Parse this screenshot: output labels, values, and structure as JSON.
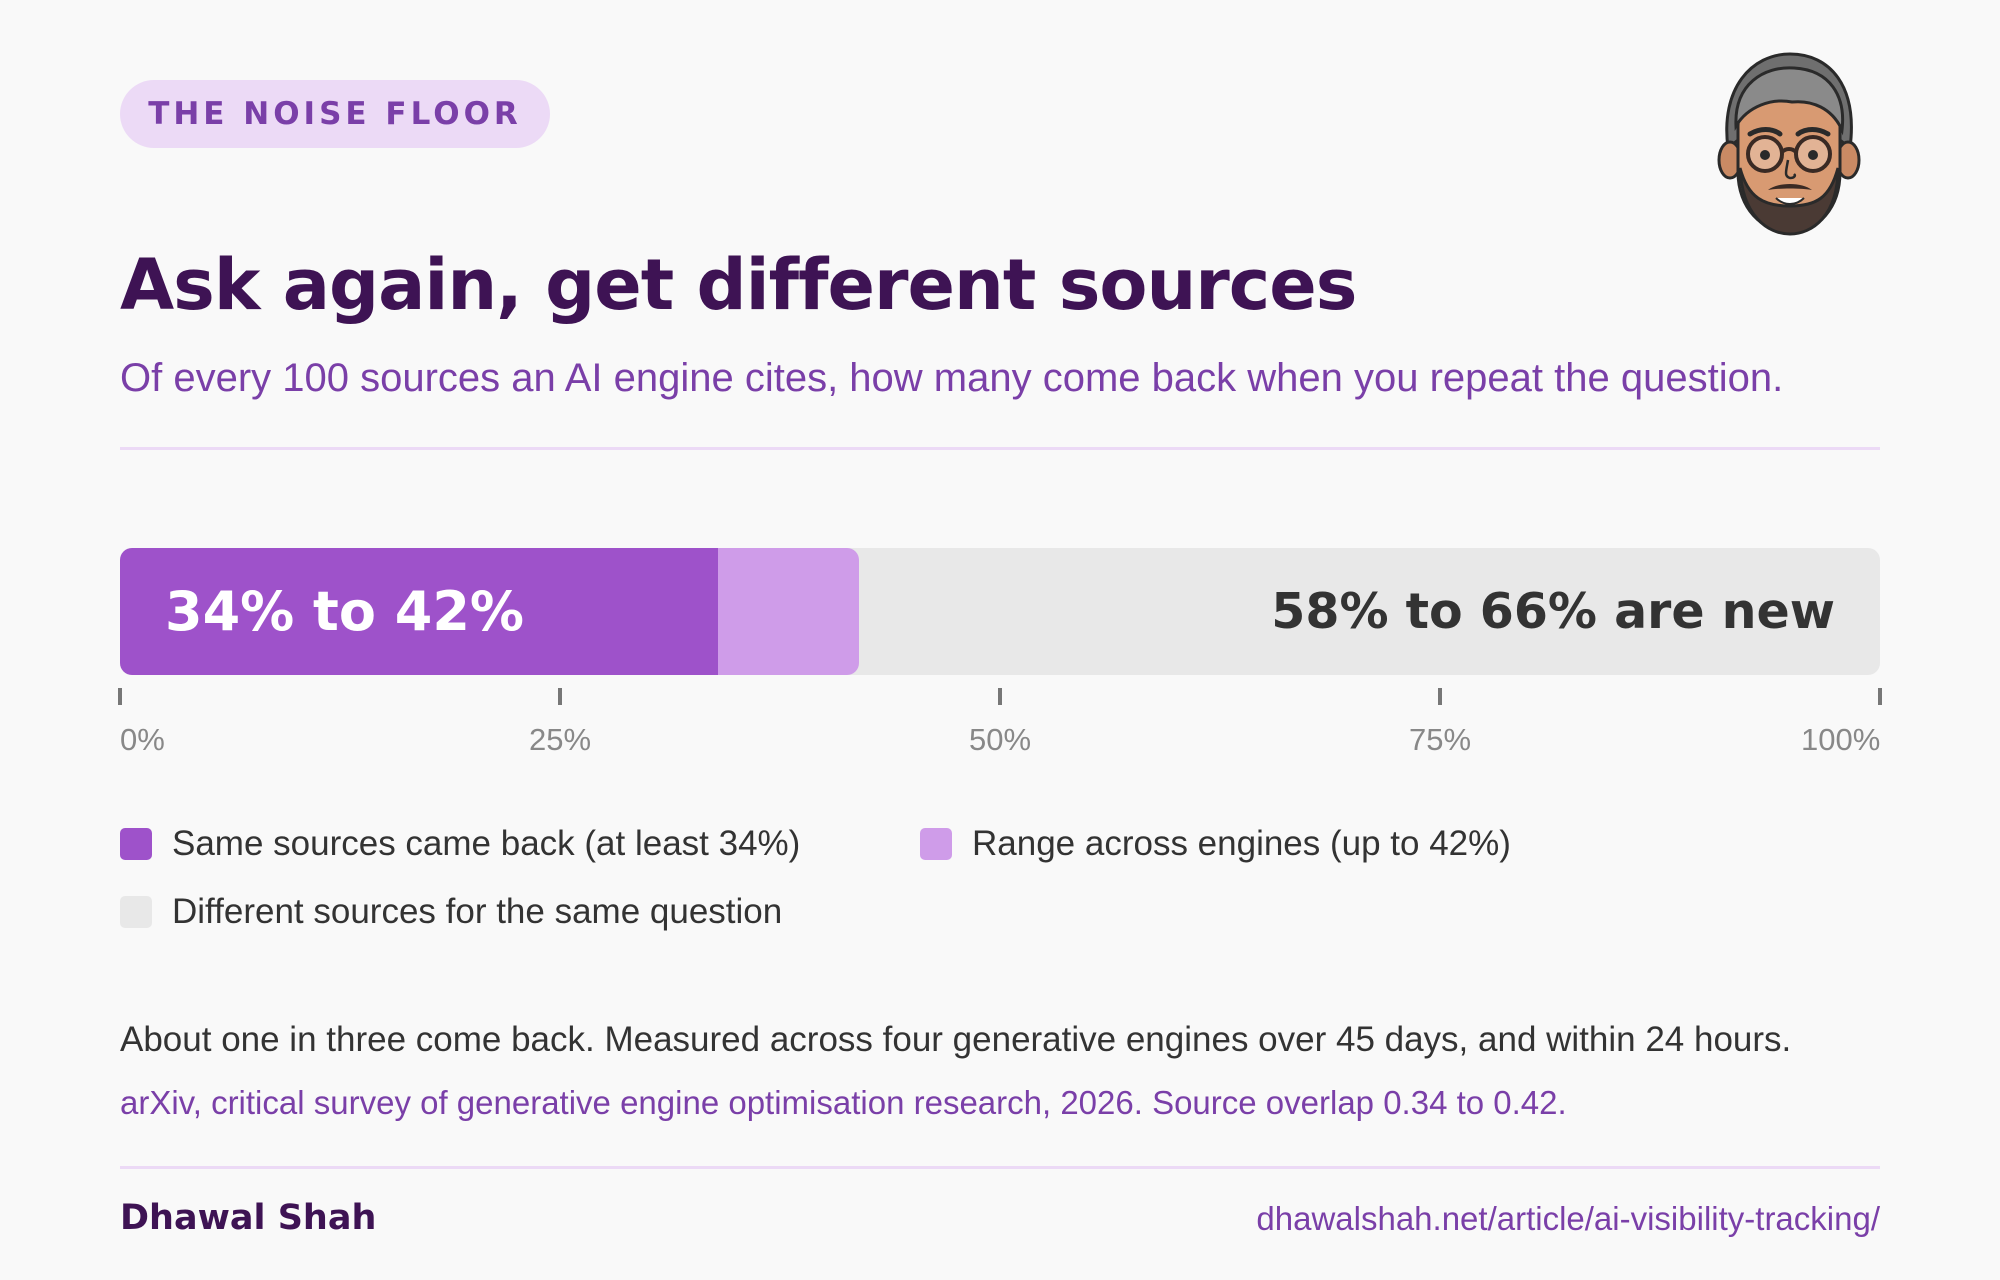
{
  "badge": "THE NOISE FLOOR",
  "title": "Ask again, get different sources",
  "subtitle": "Of every 100 sources an AI engine cites, how many come back when you repeat the question.",
  "chart_data": {
    "type": "bar",
    "orientation": "horizontal-stacked",
    "xlim": [
      0,
      100
    ],
    "ticks": [
      0,
      25,
      50,
      75,
      100
    ],
    "tick_labels": [
      "0%",
      "25%",
      "50%",
      "75%",
      "100%"
    ],
    "series": [
      {
        "name": "Same sources came back (at least 34%)",
        "values": [
          34
        ],
        "color": "#9e52ca"
      },
      {
        "name": "Range across engines (up to 42%)",
        "values": [
          8
        ],
        "color": "#cf9ce9"
      },
      {
        "name": "Different sources for the same question",
        "values": [
          58
        ],
        "color": "#e8e8e8"
      }
    ],
    "bar_label_left": "34% to 42%",
    "bar_label_right": "58% to 66% are new",
    "legend_placement": "bottom"
  },
  "note": "About one in three come back. Measured across four generative engines over 45 days, and within 24 hours.",
  "source": "arXiv, critical survey of generative engine optimisation research, 2026. Source overlap 0.34 to 0.42.",
  "author": "Dhawal Shah",
  "url": "dhawalshah.net/article/ai-visibility-tracking/",
  "colors": {
    "accent": "#9e52ca",
    "accent_light": "#cf9ce9",
    "title": "#3e1354",
    "subtitle": "#7a3fa8",
    "badge_bg": "#ecdaf6",
    "track": "#e8e8e8"
  },
  "icons": {
    "avatar": "author-avatar-cartoon"
  }
}
